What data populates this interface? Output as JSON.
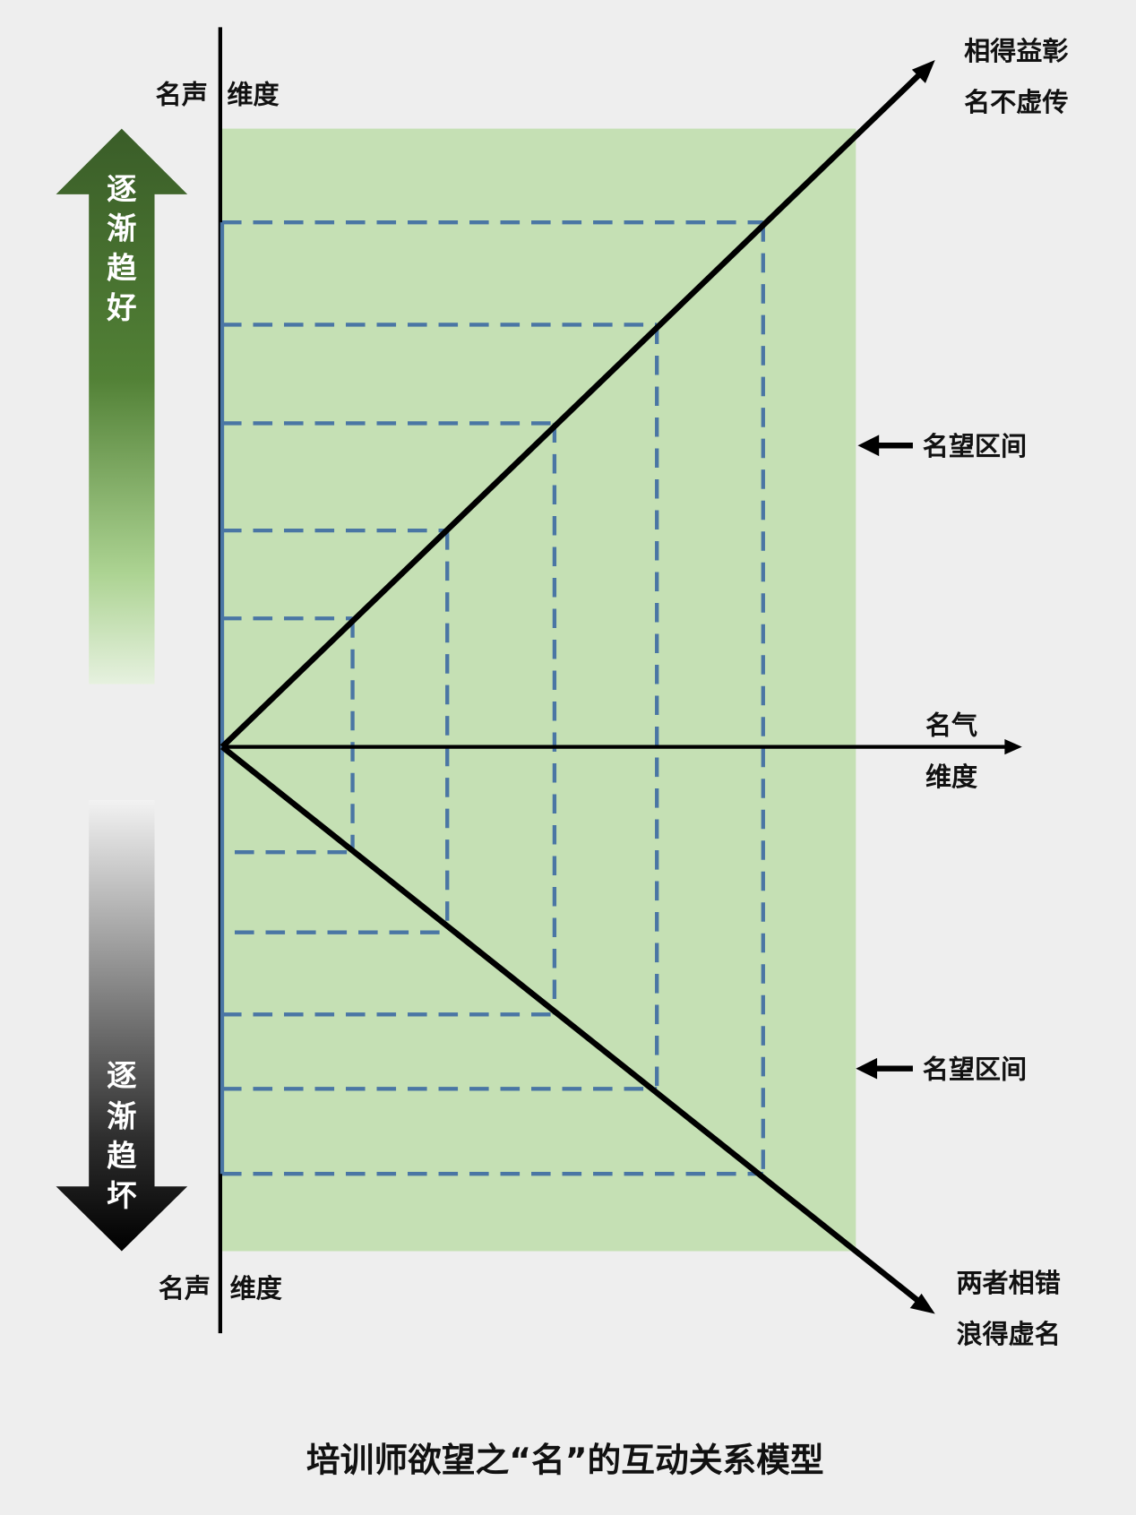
{
  "title": "培训师欲望之“名”的互动关系模型",
  "vertical_axis": {
    "label_left": "名声",
    "label_right": "维度"
  },
  "vertical_axis_bottom": {
    "label_left": "名声",
    "label_right": "维度"
  },
  "horizontal_axis": {
    "line1": "名气",
    "line2": "维度"
  },
  "upper_outcome": {
    "line1": "相得益彰",
    "line2": "名不虚传"
  },
  "lower_outcome": {
    "line1": "两者相错",
    "line2": "浪得虚名"
  },
  "range_labels": [
    "名望区间",
    "名望区间"
  ],
  "up_arrow": {
    "chars": [
      "逐",
      "渐",
      "趋",
      "好"
    ]
  },
  "down_arrow": {
    "chars": [
      "逐",
      "渐",
      "趋",
      "坏"
    ]
  },
  "colors": {
    "background": "#eeeeee",
    "zone": "#c5e0b4",
    "dashes": "#4a76a4",
    "good": "#3b5e28",
    "bad": "#000000"
  }
}
